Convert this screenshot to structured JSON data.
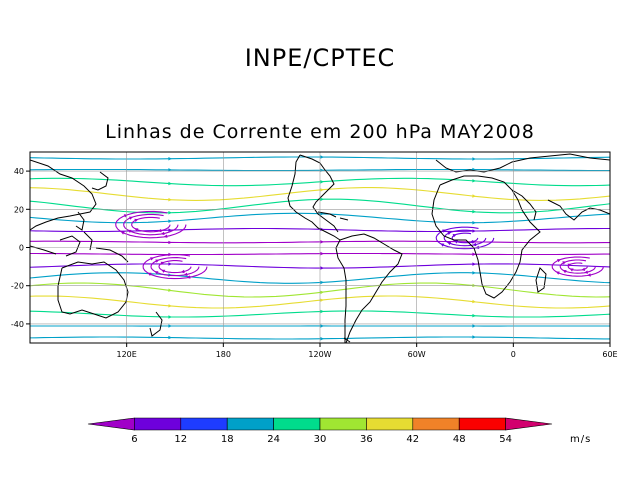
{
  "header": {
    "title": "INPE/CPTEC",
    "subtitle": "Linhas de Corrente em 200 hPa MAY2008"
  },
  "map": {
    "projection": "cylindrical-equidistant",
    "lon_range": [
      60,
      420
    ],
    "lat_range": [
      -50,
      50
    ],
    "lat_ticks": [
      {
        "value": 40,
        "label": "40"
      },
      {
        "value": 20,
        "label": "20"
      },
      {
        "value": 0,
        "label": "0"
      },
      {
        "value": -20,
        "label": "-20"
      },
      {
        "value": -40,
        "label": "-40"
      }
    ],
    "lon_ticks": [
      {
        "value": 120,
        "label": "120E"
      },
      {
        "value": 180,
        "label": "180"
      },
      {
        "value": 240,
        "label": "120W"
      },
      {
        "value": 300,
        "label": "60W"
      },
      {
        "value": 360,
        "label": "0"
      },
      {
        "value": 420,
        "label": "60E"
      }
    ],
    "grid": true
  },
  "colorbar": {
    "units": "m/s",
    "labels": [
      "6",
      "12",
      "18",
      "24",
      "30",
      "36",
      "42",
      "48",
      "54"
    ],
    "colors": [
      "#a000c8",
      "#6e00dc",
      "#1e3cff",
      "#00a0c8",
      "#00dc8c",
      "#a0e632",
      "#e6dc32",
      "#f08228",
      "#fa0000",
      "#d2006e"
    ]
  }
}
